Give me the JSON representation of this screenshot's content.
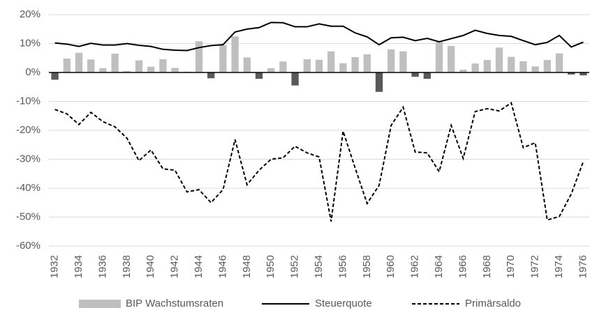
{
  "chart_data": {
    "type": "combo",
    "categories": [
      "1932",
      null,
      "1934",
      null,
      "1936",
      null,
      "1938",
      null,
      "1940",
      null,
      "1942",
      null,
      "1944",
      null,
      "1946",
      null,
      "1948",
      null,
      "1950",
      null,
      "1952",
      null,
      "1954",
      null,
      "1956",
      null,
      "1958",
      null,
      "1960",
      null,
      "1962",
      null,
      "1964",
      null,
      "1966",
      null,
      "1968",
      null,
      "1970",
      null,
      "1972",
      null,
      "1974",
      null,
      "1976"
    ],
    "ylim": [
      -60,
      20
    ],
    "yticks": [
      {
        "value": -60,
        "label": "-60%"
      },
      {
        "value": -50,
        "label": "-50%"
      },
      {
        "value": -40,
        "label": "-40%"
      },
      {
        "value": -30,
        "label": "-30%"
      },
      {
        "value": -20,
        "label": "-20%"
      },
      {
        "value": -10,
        "label": "-10%"
      },
      {
        "value": 0,
        "label": "0%"
      },
      {
        "value": 10,
        "label": "10%"
      },
      {
        "value": 20,
        "label": "20%"
      }
    ],
    "grid": true,
    "legend": "bottom",
    "series": [
      {
        "name": "BIP Wachstumsraten",
        "type": "bar",
        "color": "#bfbfbf",
        "negative_color": "#595959",
        "values": [
          -2.5,
          4.8,
          6.8,
          4.5,
          1.5,
          6.5,
          0.5,
          4.2,
          2.0,
          4.6,
          1.6,
          0.3,
          10.8,
          -2.0,
          9.5,
          12.5,
          5.2,
          -2.2,
          1.5,
          3.8,
          -4.5,
          4.6,
          4.4,
          7.3,
          3.2,
          5.3,
          6.3,
          -6.7,
          8.0,
          7.3,
          -1.5,
          -2.2,
          10.5,
          9.2,
          1.0,
          3.1,
          4.3,
          8.6,
          5.4,
          3.9,
          2.1,
          4.3,
          6.6,
          -0.7,
          -1.0
        ]
      },
      {
        "name": "Steuerquote",
        "type": "line",
        "color": "#000000",
        "dash": "solid",
        "values": [
          10.2,
          9.8,
          9.0,
          10.1,
          9.5,
          9.5,
          10.0,
          9.4,
          9.0,
          8.0,
          7.7,
          7.6,
          8.6,
          9.3,
          9.6,
          14.0,
          15.0,
          15.5,
          17.3,
          17.2,
          15.8,
          15.8,
          16.8,
          16.0,
          16.0,
          13.7,
          12.3,
          9.6,
          12.0,
          12.2,
          11.0,
          11.8,
          10.6,
          11.7,
          12.8,
          14.6,
          13.5,
          12.8,
          12.5,
          11.0,
          9.6,
          10.4,
          12.8,
          8.8,
          10.5
        ]
      },
      {
        "name": "Primärsaldo",
        "type": "line",
        "color": "#000000",
        "dash": "dashed",
        "values": [
          -12.8,
          -14.3,
          -18.0,
          -13.8,
          -17.0,
          -18.8,
          -22.7,
          -30.5,
          -26.8,
          -33.3,
          -33.8,
          -41.3,
          -40.5,
          -45.0,
          -40.5,
          -23.2,
          -38.8,
          -33.8,
          -30.0,
          -29.5,
          -25.5,
          -27.8,
          -29.2,
          -51.5,
          -20.3,
          -33.0,
          -45.3,
          -39.0,
          -18.3,
          -12.0,
          -27.5,
          -27.8,
          -34.3,
          -18.3,
          -29.7,
          -13.5,
          -12.5,
          -13.3,
          -10.5,
          -26.0,
          -24.3,
          -51.0,
          -49.8,
          -42.0,
          -30.8
        ]
      }
    ]
  }
}
